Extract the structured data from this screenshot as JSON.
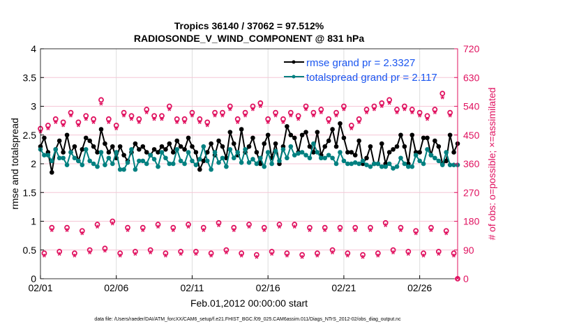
{
  "chart_data": {
    "type": "line",
    "title": [
      "Tropics 36140 / 37062 = 97.512%",
      "RADIOSONDE_V_WIND_COMPONENT @ 831 hPa"
    ],
    "xlabel": "Feb.01,2012 00:00:00 start",
    "ylabel": "rmse and totalspread",
    "y2label": "# of obs: o=possible; ×=assimilated",
    "x_tick_labels": [
      "02/01",
      "02/06",
      "02/11",
      "02/16",
      "02/21",
      "02/26"
    ],
    "x_tick_days": [
      0,
      5,
      10,
      15,
      20,
      25
    ],
    "xlim_days": [
      0,
      27.5
    ],
    "time_step_days": 0.25,
    "ylim": [
      0,
      4
    ],
    "y_ticks": [
      "0",
      "0.5",
      "1",
      "1.5",
      "2",
      "2.5",
      "3",
      "3.5",
      "4"
    ],
    "y2lim": [
      0,
      720
    ],
    "y2_ticks": [
      "0",
      "90",
      "180",
      "270",
      "360",
      "450",
      "540",
      "630",
      "720"
    ],
    "grid": true,
    "legend_position": "top-right",
    "series": [
      {
        "name": "rmse grand pr = 2.3327",
        "color": "#000000",
        "axis": "left",
        "values": [
          2.3,
          2.45,
          2.2,
          1.85,
          2.25,
          2.4,
          2.2,
          2.5,
          2.2,
          2.3,
          2.05,
          2.25,
          2.45,
          2.4,
          2.3,
          2.2,
          2.6,
          2.35,
          2.2,
          2.3,
          2.1,
          2.3,
          2.15,
          2.05,
          2.2,
          2.35,
          2.25,
          2.3,
          2.2,
          2.15,
          2.25,
          2.2,
          2.3,
          2.25,
          2.35,
          2.2,
          2.4,
          2.3,
          2.25,
          2.45,
          2.3,
          2.2,
          1.9,
          2.05,
          2.2,
          2.35,
          2.15,
          2.4,
          2.3,
          2.1,
          2.55,
          2.35,
          2.15,
          2.6,
          2.2,
          2.3,
          2.45,
          2.2,
          2.0,
          2.35,
          2.5,
          2.1,
          2.35,
          2.0,
          2.3,
          2.65,
          2.5,
          2.45,
          2.2,
          2.5,
          2.55,
          2.3,
          2.2,
          2.55,
          2.15,
          2.3,
          2.4,
          2.6,
          2.3,
          2.7,
          2.45,
          2.2,
          2.2,
          2.15,
          2.4,
          2.0,
          2.1,
          2.3,
          2.0,
          2.0,
          2.35,
          2.0,
          2.2,
          2.25,
          2.3,
          2.5,
          2.3,
          2.0,
          2.5,
          2.2,
          2.2,
          2.45,
          2.45,
          2.15,
          2.4,
          2.3,
          2.0,
          2.05,
          2.5,
          2.2,
          2.35
        ]
      },
      {
        "name": "totalspread grand pr = 2.117",
        "color": "#008080",
        "axis": "left",
        "values": [
          2.25,
          2.15,
          2.15,
          2.05,
          2.25,
          2.1,
          2.1,
          1.98,
          2.2,
          2.1,
          2.05,
          1.98,
          2.25,
          2.05,
          2.0,
          1.95,
          2.2,
          1.98,
          2.1,
          2.0,
          2.2,
          1.9,
          1.9,
          2.02,
          2.25,
          1.9,
          2.05,
          2.05,
          2.0,
          2.15,
          2.08,
          1.95,
          2.2,
          2.1,
          2.0,
          2.0,
          2.25,
          2.05,
          2.0,
          2.2,
          2.05,
          1.98,
          2.08,
          2.3,
          2.05,
          1.9,
          2.2,
          2.02,
          2.1,
          1.95,
          2.25,
          2.1,
          2.2,
          2.02,
          2.25,
          2.02,
          2.08,
          2.0,
          2.1,
          1.95,
          2.2,
          2.0,
          2.22,
          2.05,
          2.25,
          2.1,
          2.3,
          2.15,
          2.18,
          2.2,
          2.15,
          2.1,
          2.35,
          2.2,
          2.1,
          2.1,
          2.15,
          2.1,
          2.0,
          2.2,
          2.05,
          2.0,
          2.0,
          2.02,
          2.0,
          2.05,
          1.98,
          1.95,
          2.0,
          2.0,
          1.95,
          1.95,
          2.0,
          1.92,
          1.95,
          2.1,
          2.0,
          1.95,
          1.95,
          2.15,
          2.05,
          2.0,
          2.25,
          2.15,
          2.1,
          2.05,
          1.98,
          2.2,
          1.98,
          1.98,
          1.98
        ]
      },
      {
        "name": "possible",
        "color": "#E0115F",
        "axis": "right",
        "marker": "o",
        "values": [
          470,
          80,
          480,
          160,
          500,
          85,
          490,
          160,
          520,
          80,
          490,
          150,
          510,
          90,
          500,
          170,
          560,
          95,
          500,
          180,
          480,
          80,
          520,
          160,
          510,
          85,
          500,
          160,
          530,
          90,
          510,
          170,
          510,
          80,
          540,
          160,
          500,
          85,
          500,
          170,
          520,
          85,
          500,
          160,
          490,
          80,
          520,
          175,
          520,
          90,
          540,
          160,
          500,
          80,
          520,
          170,
          540,
          75,
          550,
          160,
          500,
          85,
          520,
          170,
          500,
          80,
          520,
          170,
          510,
          75,
          540,
          160,
          520,
          80,
          530,
          160,
          500,
          90,
          520,
          160,
          540,
          80,
          480,
          160,
          500,
          75,
          530,
          160,
          540,
          80,
          550,
          175,
          560,
          90,
          530,
          160,
          540,
          85,
          530,
          150,
          520,
          80,
          510,
          160,
          530,
          85,
          580,
          150,
          520,
          80,
          0
        ]
      },
      {
        "name": "assimilated",
        "color": "#E0115F",
        "axis": "right",
        "marker": "*",
        "values": [
          458,
          70,
          468,
          150,
          488,
          75,
          478,
          150,
          508,
          70,
          478,
          140,
          498,
          80,
          488,
          160,
          545,
          85,
          488,
          170,
          468,
          70,
          508,
          150,
          498,
          75,
          488,
          150,
          518,
          80,
          498,
          160,
          498,
          70,
          528,
          150,
          488,
          75,
          488,
          160,
          508,
          75,
          488,
          150,
          478,
          70,
          508,
          165,
          508,
          80,
          528,
          150,
          488,
          70,
          508,
          160,
          528,
          65,
          538,
          150,
          488,
          75,
          508,
          160,
          488,
          70,
          508,
          160,
          498,
          65,
          528,
          150,
          508,
          70,
          518,
          150,
          488,
          80,
          508,
          150,
          528,
          70,
          468,
          150,
          488,
          65,
          518,
          150,
          528,
          70,
          538,
          165,
          548,
          80,
          518,
          150,
          528,
          75,
          518,
          140,
          508,
          70,
          498,
          150,
          518,
          75,
          565,
          140,
          508,
          70,
          0
        ]
      }
    ]
  },
  "footer": "data file: /Users/raeder/DAI/ATM_forcXX/CAM6_setup/f.e21.FHIST_BGC.f09_025.CAM6assim.011/Diags_NTrS_2012-02/obs_diag_output.nc"
}
